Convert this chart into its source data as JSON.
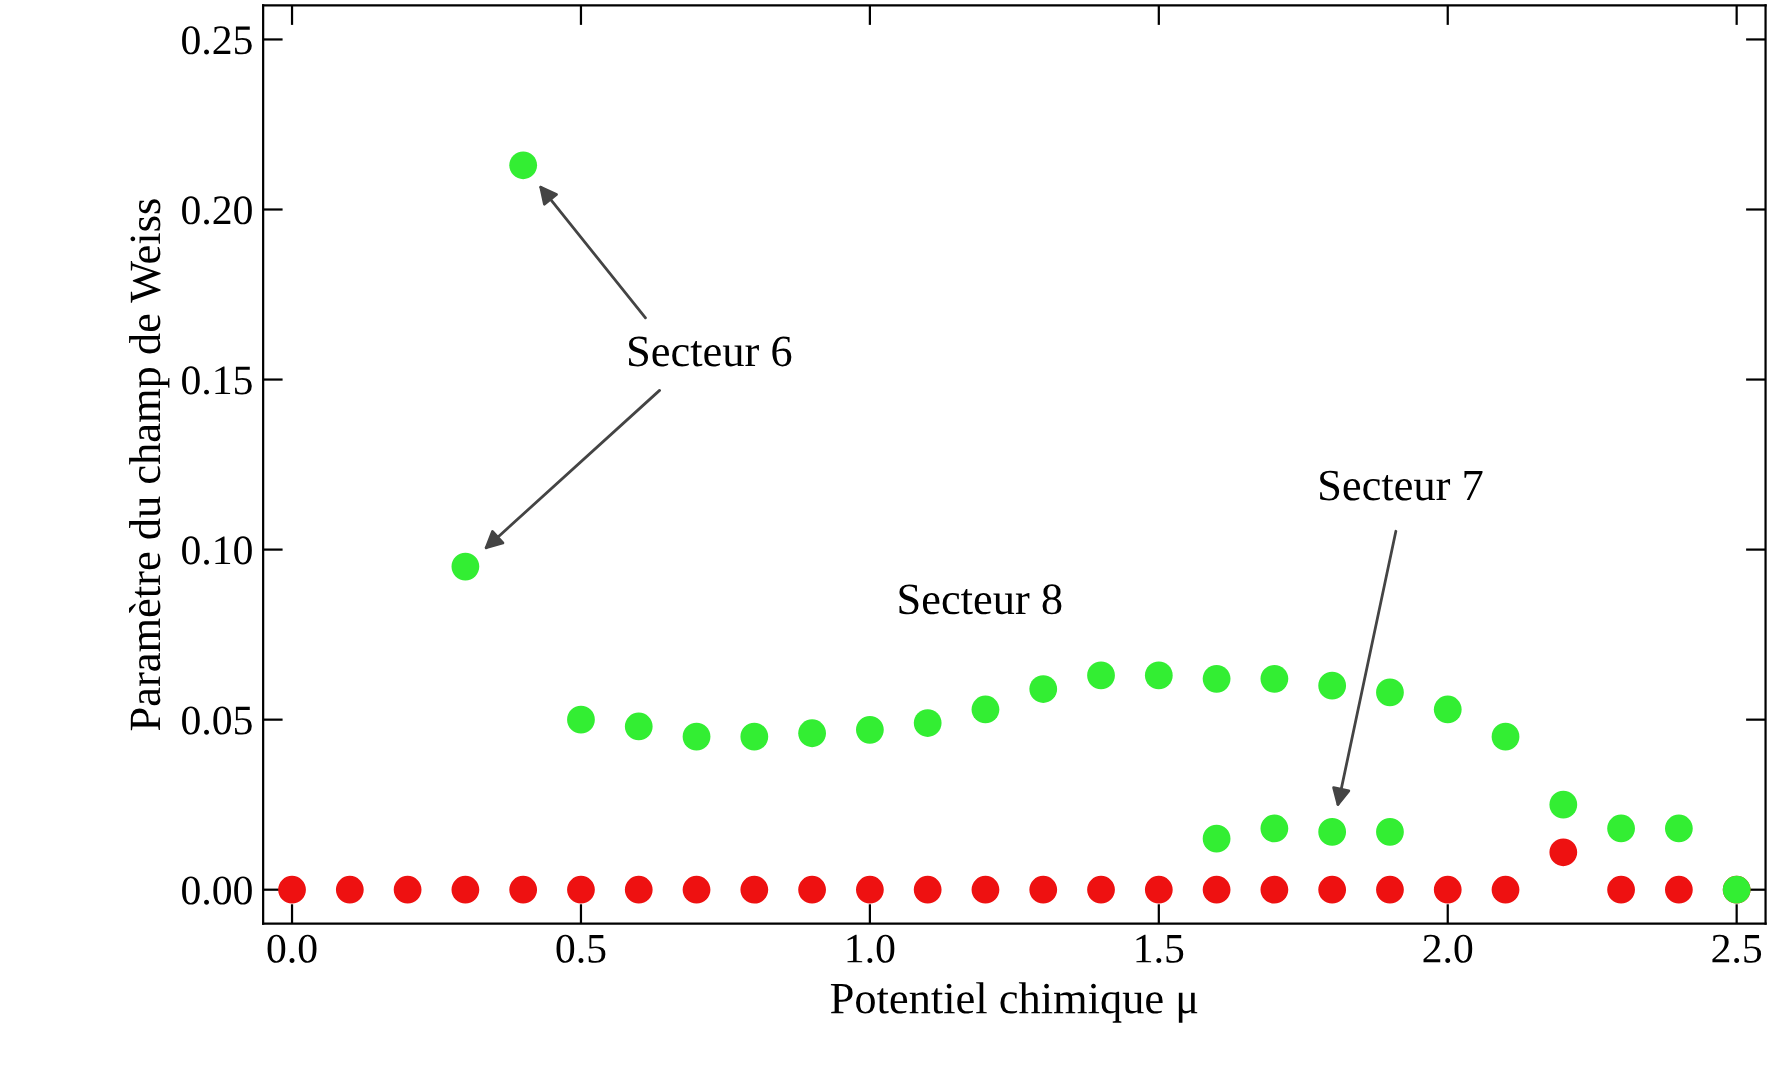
{
  "chart_data": {
    "type": "scatter",
    "xlabel": "Potentiel chimique μ",
    "ylabel": "Paramètre du champ de Weiss",
    "xlim": [
      -0.05,
      2.55
    ],
    "ylim": [
      -0.01,
      0.26
    ],
    "xticks": [
      {
        "value": 0,
        "label": "0.0"
      },
      0.5,
      {
        "value": 1,
        "label": "1.0"
      },
      1.5,
      {
        "value": 2,
        "label": "2.0"
      },
      2.5
    ],
    "yticks": [
      {
        "value": 0,
        "label": "0.00"
      },
      0.05,
      {
        "value": 0.1,
        "label": "0.10"
      },
      0.15,
      {
        "value": 0.2,
        "label": "0.20"
      },
      0.25
    ],
    "marker": "circle",
    "grid": false,
    "legend": false,
    "series": [
      {
        "color": "#ee1111",
        "x": [
          0,
          0.1,
          0.2,
          0.3,
          0.4,
          0.5,
          0.6,
          0.7,
          0.8,
          0.9,
          1.0,
          1.1,
          1.2,
          1.3,
          1.4,
          1.5,
          1.6,
          1.7,
          1.8,
          1.9,
          2.0,
          2.1,
          2.2,
          2.3,
          2.4,
          2.5
        ],
        "values": [
          0,
          0,
          0,
          0,
          0,
          0,
          0,
          0,
          0,
          0,
          0,
          0,
          0,
          0,
          0,
          0,
          0,
          0,
          0,
          0,
          0,
          0,
          0.011,
          0,
          0,
          0
        ]
      },
      {
        "color": "#33ee33",
        "x": [
          0.3,
          0.4,
          0.5,
          0.6,
          0.7,
          0.8,
          0.9,
          1.0,
          1.1,
          1.2,
          1.3,
          1.4,
          1.5,
          1.6,
          1.7,
          1.8,
          1.9,
          2.0,
          2.1,
          2.2,
          2.3,
          2.4,
          2.5
        ],
        "values": [
          0.095,
          0.213,
          0.05,
          0.048,
          0.045,
          0.045,
          0.046,
          0.047,
          0.049,
          0.053,
          0.059,
          0.063,
          0.063,
          0.062,
          0.062,
          0.06,
          0.058,
          0.053,
          0.045,
          0.025,
          0.018,
          0.018,
          0
        ]
      },
      {
        "color": "#33ee33",
        "x": [
          1.6,
          1.7,
          1.8,
          1.9
        ],
        "values": [
          0.015,
          0.018,
          0.017,
          0.017
        ]
      }
    ],
    "annotations": [
      "Secteur 6",
      "Secteur 7",
      "Secteur 8"
    ]
  }
}
